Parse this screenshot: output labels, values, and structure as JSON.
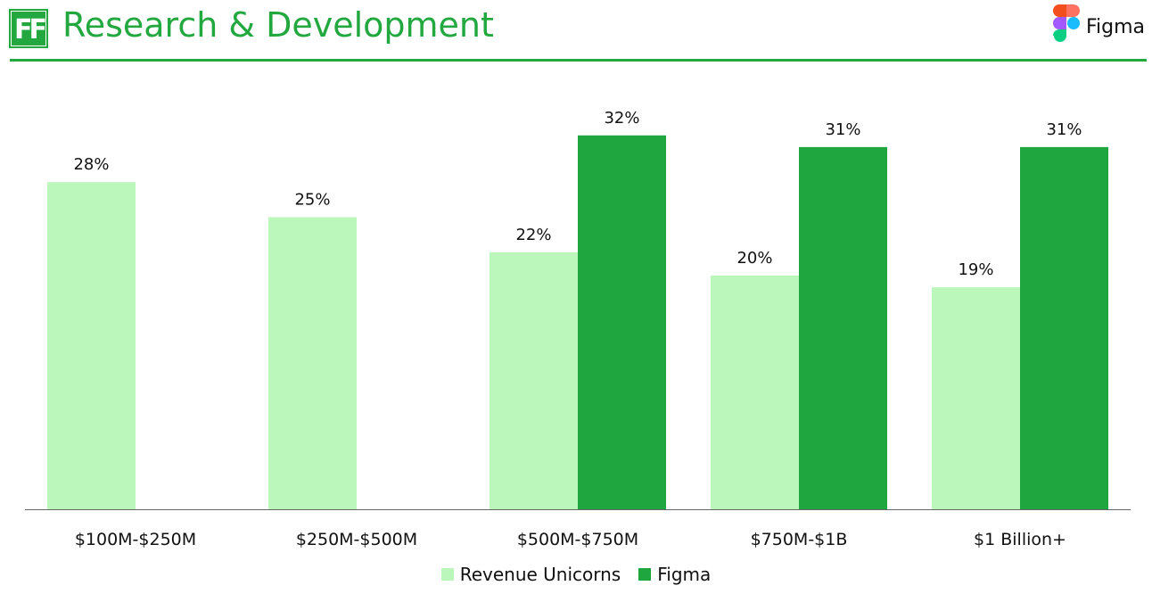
{
  "header": {
    "logo_text": "FF",
    "title": "Research & Development",
    "brand_name": "Figma"
  },
  "colors": {
    "accent": "#22a83f",
    "series_light": "#bbf7bb",
    "series_dark": "#1fa63f",
    "axis": "#666666"
  },
  "chart_data": {
    "type": "bar",
    "title": "Research & Development",
    "xlabel": "",
    "ylabel": "",
    "ylim": [
      0,
      36
    ],
    "grid": false,
    "legend_position": "bottom-center",
    "categories": [
      "$100M-$250M",
      "$250M-$500M",
      "$500M-$750M",
      "$750M-$1B",
      "$1 Billion+"
    ],
    "series": [
      {
        "name": "Revenue Unicorns",
        "values": [
          28,
          25,
          22,
          20,
          19
        ],
        "labels": [
          "28%",
          "25%",
          "22%",
          "20%",
          "19%"
        ]
      },
      {
        "name": "Figma",
        "values": [
          null,
          null,
          32,
          31,
          31
        ],
        "labels": [
          "",
          "",
          "32%",
          "31%",
          "31%"
        ]
      }
    ]
  }
}
